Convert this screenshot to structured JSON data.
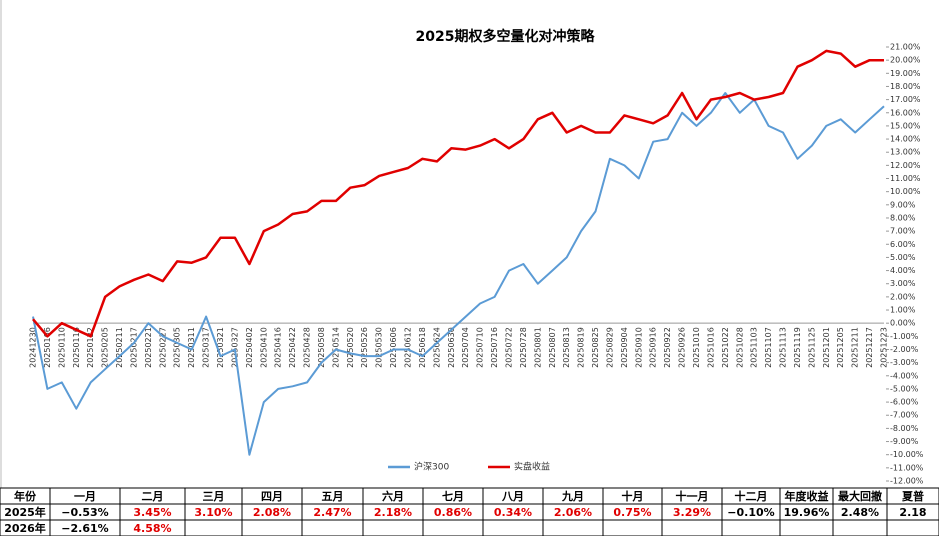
{
  "chart_data": {
    "type": "line",
    "title": "2025期权多空量化对冲策略",
    "categories": [
      "20241230",
      "20250106",
      "20250110",
      "20250116",
      "20250122",
      "20250205",
      "20250211",
      "20250217",
      "20250221",
      "20250227",
      "20250305",
      "20250311",
      "20250317",
      "20250321",
      "20250327",
      "20250402",
      "20250410",
      "20250416",
      "20250422",
      "20250428",
      "20250508",
      "20250514",
      "20250520",
      "20250526",
      "20250530",
      "20250606",
      "20250612",
      "20250618",
      "20250624",
      "20250630",
      "20250704",
      "20250710",
      "20250716",
      "20250722",
      "20250728",
      "20250801",
      "20250807",
      "20250813",
      "20250819",
      "20250825",
      "20250829",
      "20250904",
      "20250910",
      "20250916",
      "20250922",
      "20250926",
      "20251010",
      "20251016",
      "20251022",
      "20251028",
      "20251103",
      "20251107",
      "20251113",
      "20251119",
      "20251125",
      "20251201",
      "20251205",
      "20251211",
      "20251217",
      "20251223"
    ],
    "series": [
      {
        "name": "沪深300",
        "color": "#5b9bd5",
        "values": [
          0.5,
          -5,
          -4.5,
          -6.5,
          -4.5,
          -3.5,
          -2.5,
          -1.5,
          0,
          -1,
          -1.5,
          -2,
          0.5,
          -2.5,
          -2,
          -10,
          -6,
          -5,
          -4.8,
          -4.5,
          -3,
          -2,
          -2.3,
          -2.5,
          -2.5,
          -2,
          -2,
          -2.5,
          -1.5,
          -0.5,
          0.5,
          1.5,
          2,
          4,
          4.5,
          3,
          4,
          5,
          7,
          8.5,
          12.5,
          12,
          11,
          13.8,
          14,
          16,
          15,
          16,
          17.5,
          16,
          17,
          15,
          14.5,
          12.5,
          13.5,
          15,
          15.5,
          14.5,
          15.5,
          16.5
        ]
      },
      {
        "name": "实盘收益",
        "color": "#e00000",
        "values": [
          0.3,
          -1,
          0,
          -0.5,
          -1,
          2,
          2.8,
          3.3,
          3.7,
          3.2,
          4.7,
          4.6,
          5,
          6.5,
          6.5,
          4.5,
          7,
          7.5,
          8.3,
          8.5,
          9.3,
          9.3,
          10.3,
          10.5,
          11.2,
          11.5,
          11.8,
          12.5,
          12.3,
          13.3,
          13.2,
          13.5,
          14,
          13.3,
          14,
          15.5,
          16,
          14.5,
          15,
          14.5,
          14.5,
          15.8,
          15.5,
          15.2,
          15.8,
          17.5,
          15.5,
          17,
          17.2,
          17.5,
          17,
          17.2,
          17.5,
          19.5,
          20,
          20.7,
          20.5,
          19.5,
          20,
          20
        ]
      }
    ],
    "ylim": [
      -12,
      21
    ],
    "yticks": [
      {
        "value": 21,
        "label": "21.00%"
      },
      {
        "value": 20,
        "label": "20.00%"
      },
      {
        "value": 19,
        "label": "19.00%"
      },
      {
        "value": 18,
        "label": "18.00%"
      },
      {
        "value": 17,
        "label": "17.00%"
      },
      {
        "value": 16,
        "label": "16.00%"
      },
      {
        "value": 15,
        "label": "15.00%"
      },
      {
        "value": 14,
        "label": "14.00%"
      },
      {
        "value": 13,
        "label": "13.00%"
      },
      {
        "value": 12,
        "label": "12.00%"
      },
      {
        "value": 11,
        "label": "11.00%"
      },
      {
        "value": 10,
        "label": "10.00%"
      },
      {
        "value": 9,
        "label": "9.00%"
      },
      {
        "value": 8,
        "label": "8.00%"
      },
      {
        "value": 7,
        "label": "7.00%"
      },
      {
        "value": 6,
        "label": "6.00%"
      },
      {
        "value": 5,
        "label": "5.00%"
      },
      {
        "value": 4,
        "label": "4.00%"
      },
      {
        "value": 3,
        "label": "3.00%"
      },
      {
        "value": 2,
        "label": "2.00%"
      },
      {
        "value": 1,
        "label": "1.00%"
      },
      {
        "value": 0,
        "label": "0.00%"
      },
      {
        "value": -1,
        "label": "-1.00%"
      },
      {
        "value": -2,
        "label": "-2.00%"
      },
      {
        "value": -3,
        "label": "-3.00%"
      },
      {
        "value": -4,
        "label": "-4.00%"
      },
      {
        "value": -5,
        "label": "-5.00%"
      },
      {
        "value": -6,
        "label": "-6.00%"
      },
      {
        "value": -7,
        "label": "-7.00%"
      },
      {
        "value": -8,
        "label": "-8.00%"
      },
      {
        "value": -9,
        "label": "-9.00%"
      },
      {
        "value": -10,
        "label": "-10.00%"
      },
      {
        "value": -11,
        "label": "-11.00%"
      },
      {
        "value": -12,
        "label": "-12.00%"
      }
    ],
    "legend": "bottom"
  },
  "table": {
    "positive_color": "#e00000",
    "header": [
      "年份",
      "一月",
      "二月",
      "三月",
      "四月",
      "五月",
      "六月",
      "七月",
      "八月",
      "九月",
      "十月",
      "十一月",
      "十二月",
      "年度收益",
      "最大回撤",
      "夏普"
    ],
    "rows": [
      [
        "2025年",
        "−0.53%",
        "3.45%",
        "3.10%",
        "2.08%",
        "2.47%",
        "2.18%",
        "0.86%",
        "0.34%",
        "2.06%",
        "0.75%",
        "3.29%",
        "−0.10%",
        "19.96%",
        "2.48%",
        "2.18"
      ],
      [
        "2026年",
        "−2.61%",
        "4.58%"
      ]
    ]
  }
}
